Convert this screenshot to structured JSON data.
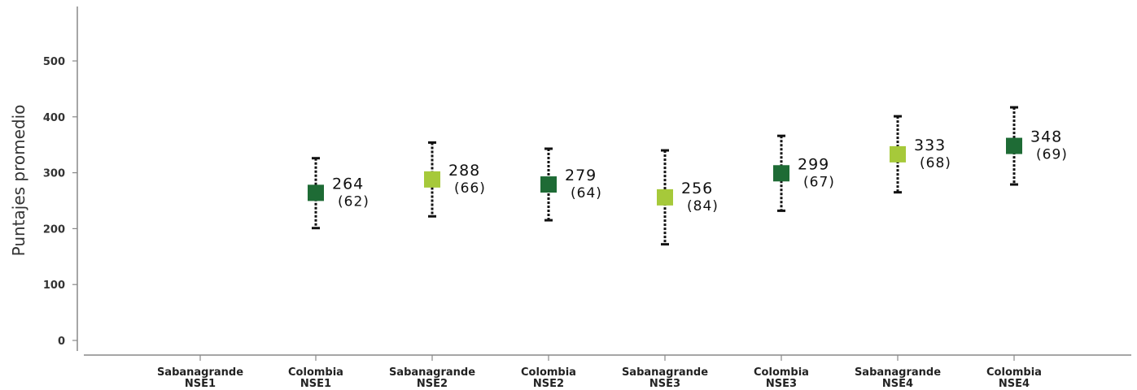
{
  "chart_data": {
    "type": "scatter",
    "ylabel": "Puntajes promedio",
    "xlabel": "",
    "title": "",
    "ylim": [
      0,
      500
    ],
    "yticks": [
      0,
      100,
      200,
      300,
      400,
      500
    ],
    "grid": false,
    "categories": [
      [
        "Sabanagrande",
        "NSE1"
      ],
      [
        "Colombia",
        "NSE1"
      ],
      [
        "Sabanagrande",
        "NSE2"
      ],
      [
        "Colombia",
        "NSE2"
      ],
      [
        "Sabanagrande",
        "NSE3"
      ],
      [
        "Colombia",
        "NSE3"
      ],
      [
        "Sabanagrande",
        "NSE4"
      ],
      [
        "Colombia",
        "NSE4"
      ]
    ],
    "points": [
      null,
      {
        "mean": 264,
        "sd": 62,
        "mean_label": "264",
        "sd_label": "(62)",
        "low": 201,
        "high": 326,
        "color": "#1e6b35"
      },
      {
        "mean": 288,
        "sd": 66,
        "mean_label": "288",
        "sd_label": "(66)",
        "low": 222,
        "high": 354,
        "color": "#a6c93a"
      },
      {
        "mean": 279,
        "sd": 64,
        "mean_label": "279",
        "sd_label": "(64)",
        "low": 215,
        "high": 343,
        "color": "#1e6b35"
      },
      {
        "mean": 256,
        "sd": 84,
        "mean_label": "256",
        "sd_label": "(84)",
        "low": 172,
        "high": 340,
        "color": "#a6c93a"
      },
      {
        "mean": 299,
        "sd": 67,
        "mean_label": "299",
        "sd_label": "(67)",
        "low": 232,
        "high": 366,
        "color": "#1e6b35"
      },
      {
        "mean": 333,
        "sd": 68,
        "mean_label": "333",
        "sd_label": "(68)",
        "low": 265,
        "high": 401,
        "color": "#a6c93a"
      },
      {
        "mean": 348,
        "sd": 69,
        "mean_label": "348",
        "sd_label": "(69)",
        "low": 279,
        "high": 417,
        "color": "#1e6b35"
      }
    ],
    "colors": {
      "Sabanagrande": "#a6c93a",
      "Colombia": "#1e6b35"
    }
  }
}
